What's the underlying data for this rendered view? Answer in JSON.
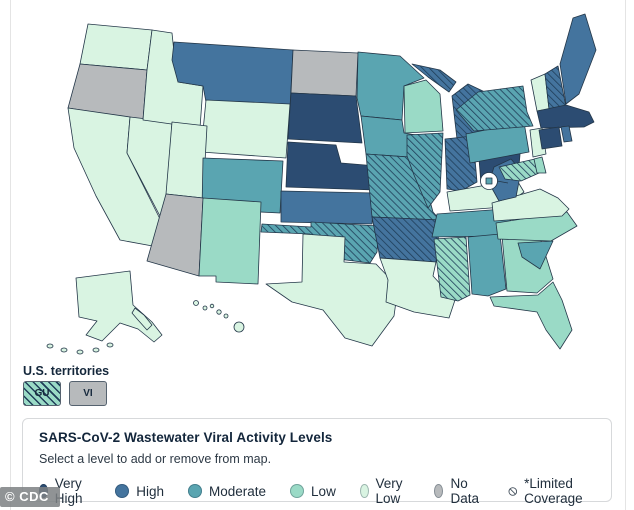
{
  "map": {
    "territories_label": "U.S. territories",
    "territories": [
      {
        "code": "GU",
        "level": "low",
        "limited": true
      },
      {
        "code": "VI",
        "level": "nodata",
        "limited": false
      }
    ],
    "states": {
      "WA": {
        "level": "verylow",
        "limited": false
      },
      "OR": {
        "level": "nodata",
        "limited": false
      },
      "CA": {
        "level": "verylow",
        "limited": false
      },
      "ID": {
        "level": "verylow",
        "limited": false
      },
      "NV": {
        "level": "verylow",
        "limited": false
      },
      "UT": {
        "level": "verylow",
        "limited": false
      },
      "AZ": {
        "level": "nodata",
        "limited": false
      },
      "MT": {
        "level": "high",
        "limited": false
      },
      "WY": {
        "level": "verylow",
        "limited": false
      },
      "CO": {
        "level": "moderate",
        "limited": false
      },
      "NM": {
        "level": "low",
        "limited": false
      },
      "ND": {
        "level": "nodata",
        "limited": false
      },
      "SD": {
        "level": "veryhigh",
        "limited": false
      },
      "NE": {
        "level": "veryhigh",
        "limited": false
      },
      "KS": {
        "level": "high",
        "limited": false
      },
      "OK": {
        "level": "moderate",
        "limited": true
      },
      "TX": {
        "level": "verylow",
        "limited": false
      },
      "MN": {
        "level": "moderate",
        "limited": false
      },
      "IA": {
        "level": "moderate",
        "limited": false
      },
      "MO": {
        "level": "moderate",
        "limited": true
      },
      "AR": {
        "level": "high",
        "limited": true
      },
      "LA": {
        "level": "verylow",
        "limited": false
      },
      "WI": {
        "level": "low",
        "limited": false
      },
      "IL": {
        "level": "moderate",
        "limited": true
      },
      "IN": {
        "level": "high",
        "limited": true
      },
      "MI": {
        "level": "high",
        "limited": true
      },
      "OH": {
        "level": "veryhigh",
        "limited": false
      },
      "KY": {
        "level": "verylow",
        "limited": false
      },
      "TN": {
        "level": "moderate",
        "limited": false
      },
      "MS": {
        "level": "low",
        "limited": true
      },
      "AL": {
        "level": "moderate",
        "limited": false
      },
      "GA": {
        "level": "low",
        "limited": false
      },
      "FL": {
        "level": "low",
        "limited": false
      },
      "SC": {
        "level": "moderate",
        "limited": false
      },
      "NC": {
        "level": "low",
        "limited": false
      },
      "VA": {
        "level": "verylow",
        "limited": false
      },
      "WV": {
        "level": "high",
        "limited": false
      },
      "MD": {
        "level": "low",
        "limited": true
      },
      "DE": {
        "level": "low",
        "limited": false
      },
      "DC": {
        "level": "moderate",
        "limited": false
      },
      "NJ": {
        "level": "verylow",
        "limited": false
      },
      "PA": {
        "level": "moderate",
        "limited": false
      },
      "NY": {
        "level": "moderate",
        "limited": true
      },
      "VT": {
        "level": "verylow",
        "limited": false
      },
      "NH": {
        "level": "high",
        "limited": true
      },
      "ME": {
        "level": "high",
        "limited": false
      },
      "MA": {
        "level": "veryhigh",
        "limited": false
      },
      "CT": {
        "level": "veryhigh",
        "limited": false
      },
      "RI": {
        "level": "high",
        "limited": false
      },
      "AK": {
        "level": "verylow",
        "limited": false
      },
      "HI": {
        "level": "verylow",
        "limited": false
      }
    },
    "watermark": "© CDC"
  },
  "legend": {
    "title": "SARS-CoV-2 Wastewater Viral Activity Levels",
    "subtitle": "Select a level to add or remove from map.",
    "items": [
      {
        "key": "veryhigh",
        "label": "Very High"
      },
      {
        "key": "high",
        "label": "High"
      },
      {
        "key": "moderate",
        "label": "Moderate"
      },
      {
        "key": "low",
        "label": "Low"
      },
      {
        "key": "verylow",
        "label": "Very Low"
      },
      {
        "key": "nodata",
        "label": "No Data"
      },
      {
        "key": "limited",
        "label": "*Limited Coverage"
      }
    ]
  },
  "colors": {
    "veryhigh": "#2c4c72",
    "high": "#44749e",
    "moderate": "#5aa5b1",
    "low": "#9adac6",
    "verylow": "#d9f4e2",
    "nodata": "#b7babc",
    "hatch": "#1f3d59",
    "border": "#233648"
  }
}
